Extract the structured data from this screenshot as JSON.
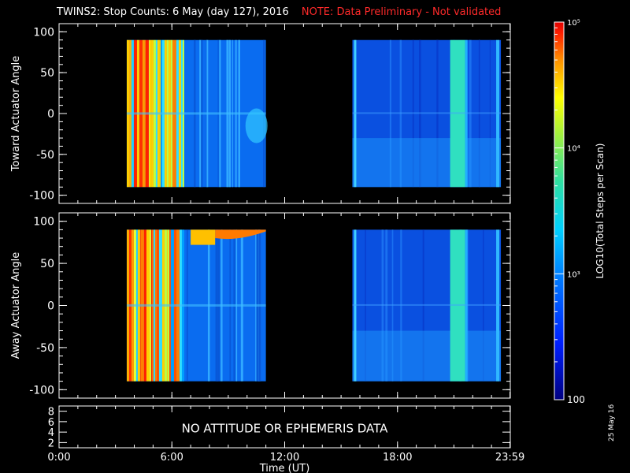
{
  "header": {
    "title": "TWINS2: Stop Counts:  6 May (day 127), 2016",
    "note": "NOTE: Data Preliminary - Not validated"
  },
  "side_date": "25 May 16",
  "colors": {
    "background": "#000000",
    "axes": "#ffffff",
    "note": "#ff2a2a"
  },
  "chart_data": [
    {
      "type": "heatmap",
      "name": "toward-panel",
      "ylabel": "Toward Actuator Angle",
      "ylim": [
        -110,
        110
      ],
      "yticks": [
        -100,
        -50,
        0,
        50,
        100
      ],
      "xlim": [
        0,
        24
      ],
      "data_blocks": [
        {
          "start_hr": 3.6,
          "end_hr": 11.0,
          "pattern": "high-then-medium"
        },
        {
          "start_hr": 15.6,
          "end_hr": 23.5,
          "pattern": "low-with-band"
        }
      ]
    },
    {
      "type": "heatmap",
      "name": "away-panel",
      "ylabel": "Away Actuator Angle",
      "ylim": [
        -110,
        110
      ],
      "yticks": [
        -100,
        -50,
        0,
        50,
        100
      ],
      "xlim": [
        0,
        24
      ],
      "data_blocks": [
        {
          "start_hr": 3.6,
          "end_hr": 11.0,
          "pattern": "high-then-medium"
        },
        {
          "start_hr": 15.6,
          "end_hr": 23.5,
          "pattern": "low-with-band"
        }
      ]
    },
    {
      "type": "table",
      "name": "attitude-panel",
      "ylim": [
        1,
        9
      ],
      "yticks": [
        2,
        4,
        6,
        8
      ],
      "message": "NO ATTITUDE OR EPHEMERIS DATA"
    }
  ],
  "xaxis": {
    "label": "Time (UT)",
    "tick_labels": [
      "0:00",
      "6:00",
      "12:00",
      "18:00",
      "23:59"
    ],
    "tick_hours": [
      0,
      6,
      12,
      18,
      23.983
    ]
  },
  "colorbar": {
    "label": "LOG10(Total Steps per Scan)",
    "tick_labels": [
      "100",
      "10³",
      "10⁴",
      "10⁵"
    ],
    "range_log": [
      2,
      5
    ],
    "tick_log": [
      2,
      3,
      4,
      5
    ]
  }
}
